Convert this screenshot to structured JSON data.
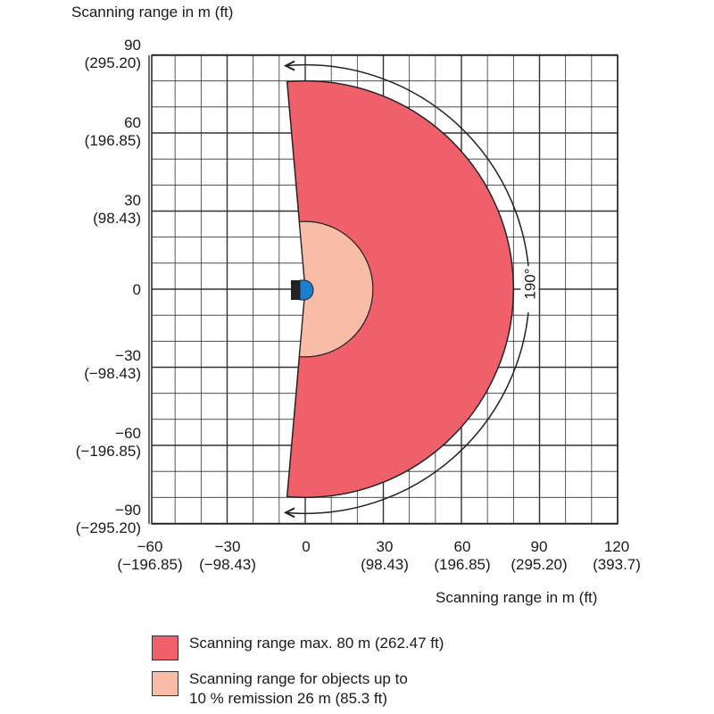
{
  "diagram": {
    "y_axis_title": "Scanning range in m (ft)",
    "x_axis_title": "Scanning range in m (ft)",
    "y_ticks": [
      {
        "m": "90",
        "ft": "(295.20)"
      },
      {
        "m": "60",
        "ft": "(196.85)"
      },
      {
        "m": "30",
        "ft": "(98.43)"
      },
      {
        "m": "0",
        "ft": ""
      },
      {
        "m": "−30",
        "ft": "(−98.43)"
      },
      {
        "m": "−60",
        "ft": "(−196.85)"
      },
      {
        "m": "−90",
        "ft": "(−295.20)"
      }
    ],
    "x_ticks": [
      {
        "m": "−60",
        "ft": "(−196.85)"
      },
      {
        "m": "−30",
        "ft": "(−98.43)"
      },
      {
        "m": "0",
        "ft": ""
      },
      {
        "m": "30",
        "ft": "(98.43)"
      },
      {
        "m": "60",
        "ft": "(196.85)"
      },
      {
        "m": "90",
        "ft": "(295.20)"
      },
      {
        "m": "120",
        "ft": "(393.7)"
      }
    ],
    "angle_label": "190°",
    "max_range_m": 80,
    "remission_range_m": 26,
    "scan_angle_deg": 190,
    "colors": {
      "max_range": "#f0606a",
      "remission_range": "#f9bca6",
      "sensor": "#1a7fd0",
      "grid": "#333333"
    }
  },
  "legend": {
    "item1": "Scanning range max. 80 m (262.47  ft)",
    "item2_line1": "Scanning range for objects up to",
    "item2_line2": "10 % remission 26 m (85.3 ft)"
  }
}
